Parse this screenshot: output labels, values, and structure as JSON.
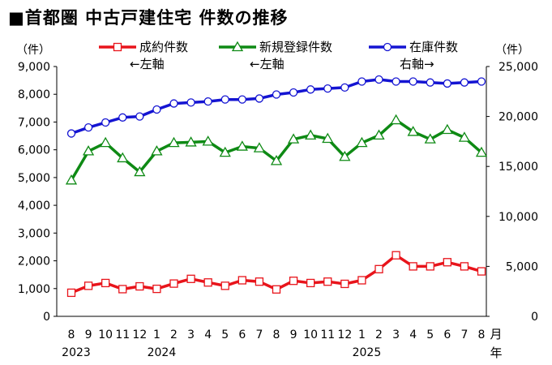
{
  "title": "■首都圏 中古戸建住宅 件数の推移",
  "chart_data": {
    "type": "line",
    "left_axis_unit": "（件）",
    "right_axis_unit": "（件）",
    "x_unit_month": "月",
    "x_unit_year": "年",
    "ylim_left": [
      0,
      9000
    ],
    "yticks_left": [
      "0",
      "1,000",
      "2,000",
      "3,000",
      "4,000",
      "5,000",
      "6,000",
      "7,000",
      "8,000",
      "9,000"
    ],
    "ylim_right": [
      0,
      25000
    ],
    "yticks_right": [
      "0",
      "5,000",
      "10,000",
      "15,000",
      "20,000",
      "25,000"
    ],
    "categories": [
      "8",
      "9",
      "10",
      "11",
      "12",
      "1",
      "2",
      "3",
      "4",
      "5",
      "6",
      "7",
      "8",
      "9",
      "10",
      "11",
      "12",
      "1",
      "2",
      "3",
      "4",
      "5",
      "6",
      "7",
      "8"
    ],
    "year_labels": [
      {
        "index": 0,
        "label": "2023"
      },
      {
        "index": 5,
        "label": "2024"
      },
      {
        "index": 17,
        "label": "2025"
      }
    ],
    "series": [
      {
        "name": "成約件数",
        "legend_sub": "←左軸",
        "axis": "left",
        "color": "#e8141b",
        "marker": "square",
        "values": [
          850,
          1100,
          1200,
          980,
          1080,
          990,
          1180,
          1350,
          1220,
          1100,
          1300,
          1250,
          970,
          1280,
          1200,
          1250,
          1170,
          1300,
          1700,
          2200,
          1800,
          1800,
          1950,
          1800,
          1620
        ]
      },
      {
        "name": "新規登録件数",
        "legend_sub": "←左軸",
        "axis": "left",
        "color": "#0e8a14",
        "marker": "triangle",
        "values": [
          4900,
          5950,
          6250,
          5700,
          5200,
          5950,
          6250,
          6270,
          6300,
          5900,
          6120,
          6060,
          5600,
          6380,
          6520,
          6400,
          5750,
          6250,
          6520,
          7070,
          6650,
          6380,
          6720,
          6440,
          5900
        ]
      },
      {
        "name": "在庫件数",
        "legend_sub": "右軸→",
        "axis": "right",
        "color": "#1414d2",
        "marker": "circle",
        "values": [
          18300,
          18900,
          19400,
          19900,
          20000,
          20700,
          21300,
          21400,
          21500,
          21700,
          21700,
          21800,
          22200,
          22400,
          22700,
          22800,
          22900,
          23500,
          23700,
          23500,
          23500,
          23400,
          23300,
          23400,
          23500
        ]
      }
    ]
  }
}
